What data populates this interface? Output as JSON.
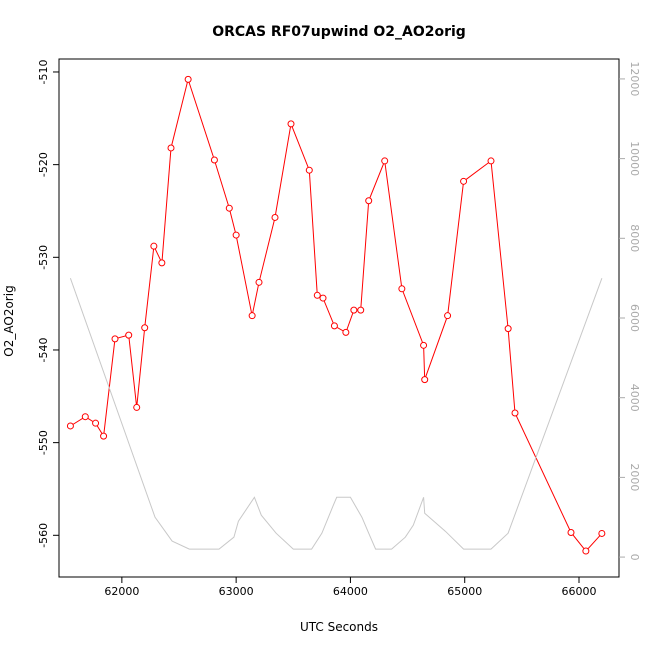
{
  "chart_data": {
    "type": "line",
    "title": "ORCAS RF07upwind O2_AO2orig",
    "xlabel": "UTC Seconds",
    "ylabel": "O2_AO2orig",
    "xlim": [
      61450,
      66350
    ],
    "ylim": [
      -564.5,
      -508.6
    ],
    "y2lim": [
      -500,
      12500
    ],
    "x_ticks": [
      62000,
      63000,
      64000,
      65000,
      66000
    ],
    "y_ticks": [
      -510,
      -520,
      -530,
      -540,
      -550,
      -560
    ],
    "y2_ticks": [
      0,
      2000,
      4000,
      6000,
      8000,
      10000,
      12000
    ],
    "grid": false,
    "series": [
      {
        "color": "#ff0000",
        "style": "line-with-open-circles",
        "axis": "left",
        "points": [
          [
            61550,
            -548.2
          ],
          [
            61680,
            -547.2
          ],
          [
            61770,
            -547.9
          ],
          [
            61840,
            -549.3
          ],
          [
            61940,
            -538.8
          ],
          [
            62060,
            -538.4
          ],
          [
            62130,
            -546.2
          ],
          [
            62200,
            -537.6
          ],
          [
            62280,
            -528.8
          ],
          [
            62350,
            -530.6
          ],
          [
            62430,
            -518.2
          ],
          [
            62580,
            -510.8
          ],
          [
            62810,
            -519.5
          ],
          [
            62940,
            -524.7
          ],
          [
            63000,
            -527.6
          ],
          [
            63140,
            -536.3
          ],
          [
            63200,
            -532.7
          ],
          [
            63340,
            -525.7
          ],
          [
            63480,
            -515.6
          ],
          [
            63640,
            -520.6
          ],
          [
            63710,
            -534.1
          ],
          [
            63760,
            -534.4
          ],
          [
            63860,
            -537.4
          ],
          [
            63960,
            -538.1
          ],
          [
            64030,
            -535.7
          ],
          [
            64090,
            -535.7
          ],
          [
            64160,
            -523.9
          ],
          [
            64300,
            -519.6
          ],
          [
            64450,
            -533.4
          ],
          [
            64640,
            -539.5
          ],
          [
            64650,
            -543.2
          ],
          [
            64850,
            -536.3
          ],
          [
            64990,
            -521.8
          ],
          [
            65230,
            -519.6
          ],
          [
            65380,
            -537.7
          ],
          [
            65440,
            -546.8
          ],
          [
            65930,
            -559.7
          ],
          [
            66060,
            -561.7
          ],
          [
            66200,
            -559.8
          ]
        ]
      },
      {
        "color": "#c8c8c8",
        "style": "line",
        "axis": "right",
        "points": [
          [
            61550,
            7000
          ],
          [
            62290,
            1000
          ],
          [
            62440,
            400
          ],
          [
            62590,
            200
          ],
          [
            62850,
            200
          ],
          [
            62980,
            500
          ],
          [
            63020,
            900
          ],
          [
            63160,
            1500
          ],
          [
            63220,
            1050
          ],
          [
            63350,
            600
          ],
          [
            63500,
            200
          ],
          [
            63660,
            200
          ],
          [
            63750,
            600
          ],
          [
            63850,
            1300
          ],
          [
            63880,
            1500
          ],
          [
            64000,
            1500
          ],
          [
            64100,
            1000
          ],
          [
            64160,
            600
          ],
          [
            64220,
            200
          ],
          [
            64360,
            200
          ],
          [
            64480,
            500
          ],
          [
            64550,
            800
          ],
          [
            64640,
            1500
          ],
          [
            64650,
            1100
          ],
          [
            64830,
            650
          ],
          [
            64990,
            200
          ],
          [
            65230,
            200
          ],
          [
            65380,
            600
          ],
          [
            66200,
            7000
          ]
        ]
      }
    ]
  }
}
